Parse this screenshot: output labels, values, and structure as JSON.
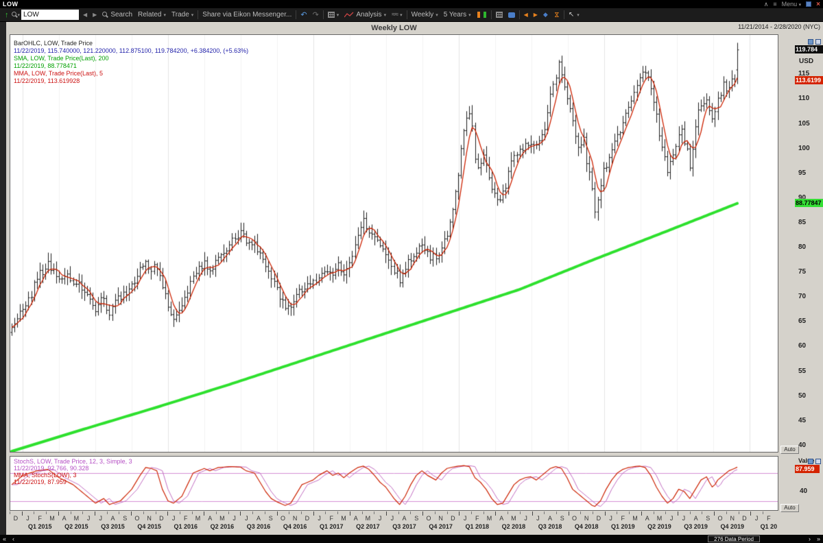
{
  "titlebar": {
    "app_title": "LOW",
    "menu_label": "Menu"
  },
  "toolbar": {
    "search_value": "LOW",
    "search_label": "Search",
    "related_label": "Related",
    "trade_label": "Trade",
    "share_label": "Share via Eikon Messenger...",
    "analysis_label": "Analysis",
    "interval_label": "Weekly",
    "range_label": "5 Years"
  },
  "icons": {
    "up_arrow": "↑",
    "back": "◀",
    "forward": "▶",
    "caret": "▾",
    "undo": "↶",
    "redo": "↷",
    "waves": "≈≈",
    "diamond": "◆",
    "hourglass": "⋈",
    "cursor": "↖",
    "left_arrow": "◀",
    "right_arrow": "▶",
    "chevron_up": "∧",
    "menu": "≡",
    "window": "■",
    "close": "×",
    "collapse_left": "«",
    "prev": "‹",
    "next": "›",
    "collapse_right": "»"
  },
  "chart": {
    "title": "Weekly LOW",
    "date_range": "11/21/2014 - 2/28/2020 (NYC)",
    "legend": {
      "line1": "BarOHLC, LOW, Trade Price",
      "line2": "11/22/2019, 115.740000, 121.220000, 112.875100, 119.784200, +6.384200, (+5.63%)",
      "line3": "SMA, LOW, Trade Price(Last), 200",
      "line4": "11/22/2019, 88.778471",
      "line5": "MMA, LOW, Trade Price(Last), 5",
      "line6": "11/22/2019, 113.619928"
    },
    "axis": {
      "currency_label": "USD",
      "last_price_flag": "119.784",
      "mma_flag": "113.6199",
      "sma_flag": "88.77847",
      "ticks": [
        115,
        110,
        105,
        100,
        95,
        90,
        85,
        80,
        75,
        70,
        65,
        60,
        55,
        50,
        45,
        40
      ]
    },
    "auto_label": "Auto"
  },
  "stoch": {
    "legend1": "StochS, LOW, Trade Price, 12, 3, Simple, 3",
    "legend2": "11/22/2019, 92.766, 90.328",
    "legend3": "MMA, StochS(LOW), 3",
    "legend4": "11/22/2019, 87.959",
    "value_label": "Value",
    "flag": "87.959",
    "tick_40": "40",
    "auto_label": "Auto"
  },
  "xaxis": {
    "months": [
      "D",
      "J",
      "F",
      "M",
      "A",
      "M",
      "J",
      "J",
      "A",
      "S",
      "O",
      "N",
      "D",
      "J",
      "F",
      "M",
      "A",
      "M",
      "J",
      "J",
      "A",
      "S",
      "O",
      "N",
      "D",
      "J",
      "F",
      "M",
      "A",
      "M",
      "J",
      "J",
      "A",
      "S",
      "O",
      "N",
      "D",
      "J",
      "F",
      "M",
      "A",
      "M",
      "J",
      "J",
      "A",
      "S",
      "O",
      "N",
      "D",
      "J",
      "F",
      "M",
      "A",
      "M",
      "J",
      "J",
      "A",
      "S",
      "O",
      "N",
      "D",
      "J",
      "F"
    ],
    "quarters": [
      "Q1 2015",
      "Q2 2015",
      "Q3 2015",
      "Q4 2015",
      "Q1 2016",
      "Q2 2016",
      "Q3 2016",
      "Q4 2016",
      "Q1 2017",
      "Q2 2017",
      "Q3 2017",
      "Q4 2017",
      "Q1 2018",
      "Q2 2018",
      "Q3 2018",
      "Q4 2018",
      "Q1 2019",
      "Q2 2019",
      "Q3 2019",
      "Q4 2019",
      "Q1 20"
    ]
  },
  "statusbar": {
    "data_period": "276 Data Period"
  },
  "chart_data": {
    "type": "ohlc",
    "symbol": "LOW",
    "interval": "weekly",
    "title": "Weekly LOW",
    "x_range_label": "11/21/2014 - 2/28/2020 (NYC)",
    "visible_bars": 261,
    "weeks_across_axis": 275,
    "price_axis": {
      "label": "USD",
      "min": 38.6,
      "max": 122.8,
      "ticks": [
        40,
        45,
        50,
        55,
        60,
        65,
        70,
        75,
        80,
        85,
        90,
        95,
        100,
        105,
        110,
        115
      ]
    },
    "last_bar": {
      "date": "11/22/2019",
      "open": 115.74,
      "high": 121.22,
      "low": 112.8751,
      "close": 119.7842,
      "change": 6.3842,
      "change_pct": 5.63
    },
    "sma200_last": 88.778471,
    "mma5_last": 113.619928,
    "stoch_last": {
      "k": 92.766,
      "d": 90.328,
      "mma": 87.959
    },
    "close_keypoints": [
      [
        0,
        63.5
      ],
      [
        2,
        66
      ],
      [
        4,
        67.5
      ],
      [
        7,
        70.5
      ],
      [
        9,
        74
      ],
      [
        13,
        76.5
      ],
      [
        15,
        75
      ],
      [
        17,
        73
      ],
      [
        20,
        74.5
      ],
      [
        23,
        72.5
      ],
      [
        26,
        71.5
      ],
      [
        28,
        69
      ],
      [
        30,
        67.5
      ],
      [
        32,
        70
      ],
      [
        35,
        66.5
      ],
      [
        37,
        69
      ],
      [
        39,
        69.5
      ],
      [
        43,
        72
      ],
      [
        46,
        75.5
      ],
      [
        48,
        77
      ],
      [
        50,
        75.5
      ],
      [
        52,
        76
      ],
      [
        54,
        71.5
      ],
      [
        56,
        68.5
      ],
      [
        58,
        65.5
      ],
      [
        61,
        67.5
      ],
      [
        63,
        70.5
      ],
      [
        65,
        74
      ],
      [
        69,
        76.5
      ],
      [
        71,
        75
      ],
      [
        74,
        77.5
      ],
      [
        76,
        79
      ],
      [
        78,
        80.5
      ],
      [
        82,
        82.5
      ],
      [
        84,
        81.5
      ],
      [
        87,
        81
      ],
      [
        89,
        78
      ],
      [
        91,
        75.5
      ],
      [
        93,
        73
      ],
      [
        95,
        71.5
      ],
      [
        98,
        67.5
      ],
      [
        100,
        68
      ],
      [
        102,
        70.5
      ],
      [
        104,
        71.2
      ],
      [
        108,
        72.5
      ],
      [
        110,
        74
      ],
      [
        113,
        75.5
      ],
      [
        115,
        74
      ],
      [
        117,
        76
      ],
      [
        119,
        74.5
      ],
      [
        121,
        76.5
      ],
      [
        124,
        82
      ],
      [
        126,
        85.5
      ],
      [
        128,
        83
      ],
      [
        130,
        81.5
      ],
      [
        132,
        80
      ],
      [
        134,
        79
      ],
      [
        137,
        75.5
      ],
      [
        139,
        73.5
      ],
      [
        141,
        76
      ],
      [
        143,
        77.5
      ],
      [
        145,
        79.5
      ],
      [
        147,
        80
      ],
      [
        149,
        78.5
      ],
      [
        152,
        77.5
      ],
      [
        154,
        80
      ],
      [
        156,
        83
      ],
      [
        158,
        87
      ],
      [
        160,
        95
      ],
      [
        162,
        103
      ],
      [
        164,
        107.5
      ],
      [
        165,
        104
      ],
      [
        166,
        98
      ],
      [
        167,
        95.5
      ],
      [
        168,
        97
      ],
      [
        169,
        98.5
      ],
      [
        171,
        94
      ],
      [
        173,
        90.5
      ],
      [
        175,
        89.5
      ],
      [
        177,
        92
      ],
      [
        178,
        95
      ],
      [
        180,
        98
      ],
      [
        182,
        99.5
      ],
      [
        184,
        100.5
      ],
      [
        186,
        101
      ],
      [
        188,
        100
      ],
      [
        191,
        104.5
      ],
      [
        193,
        110
      ],
      [
        195,
        114.5
      ],
      [
        196,
        116.5
      ],
      [
        197,
        115
      ],
      [
        199,
        110
      ],
      [
        201,
        105.5
      ],
      [
        203,
        99.5
      ],
      [
        205,
        101.5
      ],
      [
        206,
        97
      ],
      [
        208,
        92
      ],
      [
        209,
        87.5
      ],
      [
        210,
        90
      ],
      [
        212,
        95.5
      ],
      [
        214,
        98
      ],
      [
        217,
        102
      ],
      [
        219,
        105
      ],
      [
        221,
        108.5
      ],
      [
        223,
        111
      ],
      [
        225,
        114
      ],
      [
        227,
        115.5
      ],
      [
        228,
        113.5
      ],
      [
        230,
        109
      ],
      [
        232,
        103
      ],
      [
        234,
        97.5
      ],
      [
        235,
        94.5
      ],
      [
        236,
        96.5
      ],
      [
        238,
        101
      ],
      [
        240,
        103.5
      ],
      [
        242,
        99
      ],
      [
        243,
        95.5
      ],
      [
        244,
        99
      ],
      [
        245,
        104
      ],
      [
        246,
        107.5
      ],
      [
        247,
        108.5
      ],
      [
        249,
        110
      ],
      [
        250,
        107.5
      ],
      [
        251,
        105.5
      ],
      [
        252,
        107
      ],
      [
        253,
        109.5
      ],
      [
        254,
        111
      ],
      [
        255,
        112.5
      ],
      [
        256,
        111.5
      ],
      [
        257,
        113
      ],
      [
        258,
        114
      ],
      [
        259,
        113.4
      ],
      [
        260,
        119.784
      ]
    ],
    "sma200_keypoints": [
      [
        0,
        38.7
      ],
      [
        26,
        43.2
      ],
      [
        52,
        47.6
      ],
      [
        78,
        52.2
      ],
      [
        104,
        57
      ],
      [
        130,
        61.8
      ],
      [
        156,
        66.6
      ],
      [
        182,
        71.4
      ],
      [
        208,
        77.3
      ],
      [
        234,
        83
      ],
      [
        260,
        88.78
      ]
    ],
    "stoch_keypoints": [
      [
        0,
        55
      ],
      [
        4,
        75
      ],
      [
        9,
        85
      ],
      [
        13,
        88
      ],
      [
        17,
        70
      ],
      [
        22,
        55
      ],
      [
        26,
        35
      ],
      [
        30,
        15
      ],
      [
        33,
        25
      ],
      [
        35,
        12
      ],
      [
        39,
        20
      ],
      [
        43,
        45
      ],
      [
        46,
        75
      ],
      [
        48,
        92
      ],
      [
        50,
        90
      ],
      [
        52,
        85
      ],
      [
        54,
        45
      ],
      [
        56,
        20
      ],
      [
        58,
        15
      ],
      [
        61,
        30
      ],
      [
        63,
        55
      ],
      [
        65,
        80
      ],
      [
        69,
        90
      ],
      [
        71,
        85
      ],
      [
        74,
        92
      ],
      [
        78,
        94
      ],
      [
        82,
        93
      ],
      [
        84,
        85
      ],
      [
        87,
        80
      ],
      [
        89,
        60
      ],
      [
        91,
        40
      ],
      [
        93,
        25
      ],
      [
        95,
        18
      ],
      [
        98,
        10
      ],
      [
        100,
        15
      ],
      [
        102,
        35
      ],
      [
        104,
        55
      ],
      [
        108,
        65
      ],
      [
        110,
        75
      ],
      [
        113,
        85
      ],
      [
        115,
        75
      ],
      [
        117,
        80
      ],
      [
        119,
        70
      ],
      [
        121,
        80
      ],
      [
        124,
        92
      ],
      [
        126,
        95
      ],
      [
        128,
        88
      ],
      [
        130,
        75
      ],
      [
        132,
        60
      ],
      [
        134,
        50
      ],
      [
        137,
        25
      ],
      [
        139,
        12
      ],
      [
        141,
        30
      ],
      [
        143,
        55
      ],
      [
        145,
        75
      ],
      [
        147,
        85
      ],
      [
        149,
        75
      ],
      [
        152,
        65
      ],
      [
        154,
        80
      ],
      [
        156,
        90
      ],
      [
        158,
        93
      ],
      [
        160,
        95
      ],
      [
        162,
        96
      ],
      [
        164,
        94
      ],
      [
        166,
        70
      ],
      [
        168,
        60
      ],
      [
        170,
        45
      ],
      [
        172,
        25
      ],
      [
        174,
        12
      ],
      [
        176,
        15
      ],
      [
        178,
        35
      ],
      [
        180,
        55
      ],
      [
        182,
        65
      ],
      [
        184,
        70
      ],
      [
        186,
        72
      ],
      [
        188,
        65
      ],
      [
        191,
        80
      ],
      [
        193,
        90
      ],
      [
        195,
        94
      ],
      [
        197,
        90
      ],
      [
        199,
        70
      ],
      [
        201,
        45
      ],
      [
        204,
        30
      ],
      [
        206,
        20
      ],
      [
        208,
        10
      ],
      [
        209,
        8
      ],
      [
        211,
        20
      ],
      [
        213,
        45
      ],
      [
        215,
        65
      ],
      [
        217,
        80
      ],
      [
        219,
        88
      ],
      [
        221,
        92
      ],
      [
        223,
        94
      ],
      [
        225,
        95
      ],
      [
        227,
        92
      ],
      [
        229,
        75
      ],
      [
        231,
        50
      ],
      [
        233,
        30
      ],
      [
        235,
        15
      ],
      [
        237,
        25
      ],
      [
        239,
        45
      ],
      [
        241,
        40
      ],
      [
        243,
        25
      ],
      [
        245,
        45
      ],
      [
        247,
        65
      ],
      [
        249,
        72
      ],
      [
        250,
        60
      ],
      [
        251,
        50
      ],
      [
        252,
        55
      ],
      [
        253,
        65
      ],
      [
        255,
        75
      ],
      [
        257,
        85
      ],
      [
        259,
        90
      ],
      [
        260,
        92.8
      ]
    ],
    "stoch_bands": [
      80,
      20
    ],
    "series_colors": {
      "bars": "#1a1a1a",
      "mma": "#cc2200",
      "sma": "#2ee02e",
      "stoch": "#cc2200",
      "stoch_secondary": "#c06ac0",
      "stoch_bands": "#d48ed4"
    }
  }
}
